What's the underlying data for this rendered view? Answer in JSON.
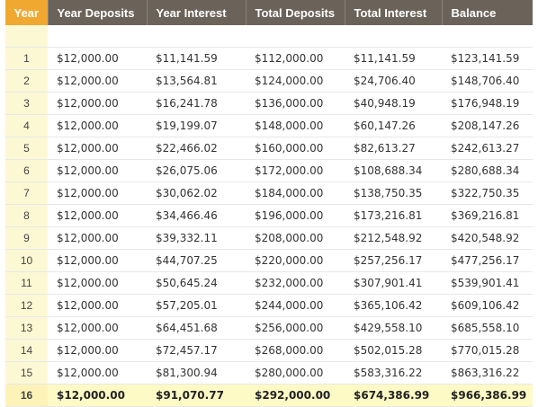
{
  "table": {
    "headers": [
      "Year",
      "Year Deposits",
      "Year Interest",
      "Total Deposits",
      "Total Interest",
      "Balance"
    ],
    "rows": [
      [
        "1",
        "$12,000.00",
        "$11,141.59",
        "$112,000.00",
        "$11,141.59",
        "$123,141.59"
      ],
      [
        "2",
        "$12,000.00",
        "$13,564.81",
        "$124,000.00",
        "$24,706.40",
        "$148,706.40"
      ],
      [
        "3",
        "$12,000.00",
        "$16,241.78",
        "$136,000.00",
        "$40,948.19",
        "$176,948.19"
      ],
      [
        "4",
        "$12,000.00",
        "$19,199.07",
        "$148,000.00",
        "$60,147.26",
        "$208,147.26"
      ],
      [
        "5",
        "$12,000.00",
        "$22,466.02",
        "$160,000.00",
        "$82,613.27",
        "$242,613.27"
      ],
      [
        "6",
        "$12,000.00",
        "$26,075.06",
        "$172,000.00",
        "$108,688.34",
        "$280,688.34"
      ],
      [
        "7",
        "$12,000.00",
        "$30,062.02",
        "$184,000.00",
        "$138,750.35",
        "$322,750.35"
      ],
      [
        "8",
        "$12,000.00",
        "$34,466.46",
        "$196,000.00",
        "$173,216.81",
        "$369,216.81"
      ],
      [
        "9",
        "$12,000.00",
        "$39,332.11",
        "$208,000.00",
        "$212,548.92",
        "$420,548.92"
      ],
      [
        "10",
        "$12,000.00",
        "$44,707.25",
        "$220,000.00",
        "$257,256.17",
        "$477,256.17"
      ],
      [
        "11",
        "$12,000.00",
        "$50,645.24",
        "$232,000.00",
        "$307,901.41",
        "$539,901.41"
      ],
      [
        "12",
        "$12,000.00",
        "$57,205.01",
        "$244,000.00",
        "$365,106.42",
        "$609,106.42"
      ],
      [
        "13",
        "$12,000.00",
        "$64,451.68",
        "$256,000.00",
        "$429,558.10",
        "$685,558.10"
      ],
      [
        "14",
        "$12,000.00",
        "$72,457.17",
        "$268,000.00",
        "$502,015.28",
        "$770,015.28"
      ],
      [
        "15",
        "$12,000.00",
        "$81,300.94",
        "$280,000.00",
        "$583,316.22",
        "$863,316.22"
      ],
      [
        "16",
        "$12,000.00",
        "$91,070.77",
        "$292,000.00",
        "$674,386.99",
        "$966,386.99"
      ]
    ]
  },
  "colors": {
    "header_bg": "#6b6359",
    "year_header_bg": "#f0a830",
    "year_cell_bg": "#fdf8d4",
    "final_row_bg": "#fdfac6"
  }
}
